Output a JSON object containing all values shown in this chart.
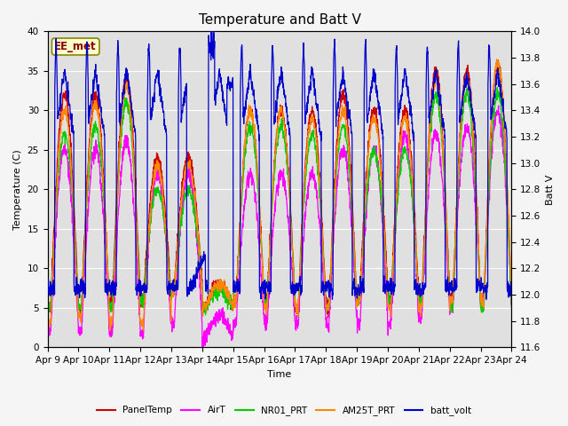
{
  "title": "Temperature and Batt V",
  "ylabel_left": "Temperature (C)",
  "ylabel_right": "Batt V",
  "xlabel": "Time",
  "annotation": "EE_met",
  "ylim_left": [
    0,
    40
  ],
  "ylim_right": [
    11.6,
    14.0
  ],
  "x_tick_labels": [
    "Apr 9",
    "Apr 10",
    "Apr 11",
    "Apr 12",
    "Apr 13",
    "Apr 14",
    "Apr 15",
    "Apr 16",
    "Apr 17",
    "Apr 18",
    "Apr 19",
    "Apr 20",
    "Apr 21",
    "Apr 22",
    "Apr 23",
    "Apr 24"
  ],
  "legend_entries": [
    "PanelTemp",
    "AirT",
    "NR01_PRT",
    "AM25T_PRT",
    "batt_volt"
  ],
  "legend_colors": [
    "#cc0000",
    "#ff00ff",
    "#00cc00",
    "#ff8800",
    "#0000cc"
  ],
  "background_color": "#e0e0e0",
  "grid_color": "#ffffff",
  "title_fontsize": 11,
  "annotation_facecolor": "#ffffcc",
  "annotation_edgecolor": "#888800",
  "annotation_textcolor": "#880000"
}
